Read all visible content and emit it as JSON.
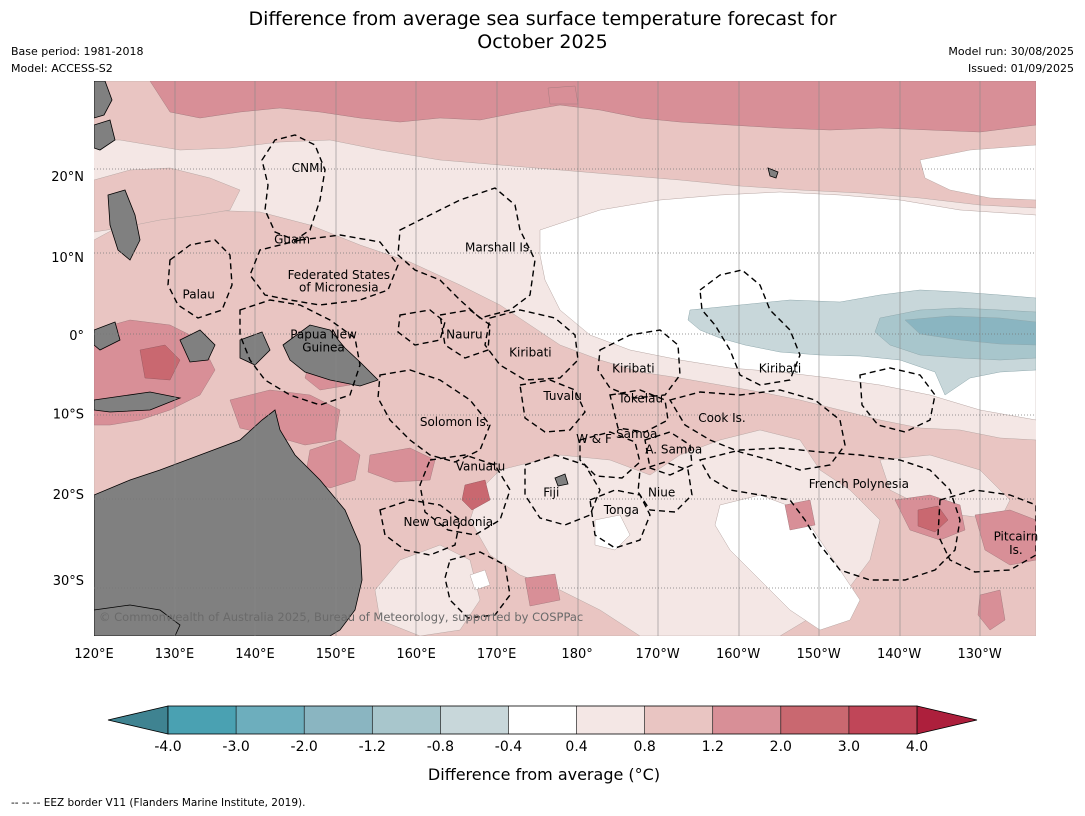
{
  "title_line1": "Difference from average sea surface temperature forecast for",
  "title_line2": "October 2025",
  "meta": {
    "base_period": "Base period: 1981-2018",
    "model": "Model: ACCESS-S2",
    "model_run": "Model run: 30/08/2025",
    "issued": "Issued: 01/09/2025"
  },
  "map": {
    "lon_ticks": [
      "120°E",
      "130°E",
      "140°E",
      "150°E",
      "160°E",
      "170°E",
      "180°",
      "170°W",
      "160°W",
      "150°W",
      "140°W",
      "130°W"
    ],
    "lat_ticks": [
      "20°N",
      "10°N",
      "0°",
      "10°S",
      "20°S",
      "30°S"
    ],
    "lon_range": [
      120,
      237
    ],
    "lat_range": [
      -36,
      31
    ],
    "copyright": "© Commonwealth of Australia 2025, Bureau of Meteorology, supported by COSPPac",
    "countries": [
      {
        "name": "CNMI",
        "lon": 146.5,
        "lat": 21.0
      },
      {
        "name": "Guam",
        "lon": 144.6,
        "lat": 12.2
      },
      {
        "name": "Marshall Is.",
        "lon": 170.3,
        "lat": 11.2
      },
      {
        "name": "Federated States",
        "lon": 150.4,
        "lat": 7.7
      },
      {
        "name": "of Micronesia",
        "lon": 150.4,
        "lat": 6.1
      },
      {
        "name": "Palau",
        "lon": 133.0,
        "lat": 5.2
      },
      {
        "name": "Nauru",
        "lon": 166.0,
        "lat": 0.1
      },
      {
        "name": "Papua New",
        "lon": 148.5,
        "lat": 0.1
      },
      {
        "name": "Guinea",
        "lon": 148.5,
        "lat": -1.6
      },
      {
        "name": "Kiribati",
        "lon": 174.2,
        "lat": -2.2
      },
      {
        "name": "Kiribati",
        "lon": 187.0,
        "lat": -4.3
      },
      {
        "name": "Kiribati",
        "lon": 205.2,
        "lat": -4.3
      },
      {
        "name": "Tuvalu",
        "lon": 178.2,
        "lat": -7.8
      },
      {
        "name": "Tokelau",
        "lon": 187.9,
        "lat": -8.1
      },
      {
        "name": "Cook Is.",
        "lon": 198.0,
        "lat": -10.6
      },
      {
        "name": "Solomon Is.",
        "lon": 164.8,
        "lat": -11.1
      },
      {
        "name": "Samoa",
        "lon": 187.4,
        "lat": -12.6
      },
      {
        "name": "W & F",
        "lon": 182.1,
        "lat": -13.2
      },
      {
        "name": "A. Samoa",
        "lon": 192.0,
        "lat": -14.5
      },
      {
        "name": "Vanuatu",
        "lon": 168.0,
        "lat": -16.6
      },
      {
        "name": "French Polynesia",
        "lon": 215.0,
        "lat": -18.8
      },
      {
        "name": "Fiji",
        "lon": 176.8,
        "lat": -19.8
      },
      {
        "name": "Niue",
        "lon": 190.5,
        "lat": -19.8
      },
      {
        "name": "Tonga",
        "lon": 185.5,
        "lat": -21.9
      },
      {
        "name": "New Caledonia",
        "lon": 164.0,
        "lat": -23.3
      },
      {
        "name": "Pitcairn",
        "lon": 234.5,
        "lat": -25.0
      },
      {
        "name": "Is.",
        "lon": 234.5,
        "lat": -26.6
      }
    ]
  },
  "colorbar": {
    "title": "Difference from average (°C)",
    "tick_labels": [
      "-4.0",
      "-3.0",
      "-2.0",
      "-1.2",
      "-0.8",
      "-0.4",
      "0.4",
      "0.8",
      "1.2",
      "2.0",
      "3.0",
      "4.0"
    ],
    "under_color": "#3f8391",
    "over_color": "#ad1f3c",
    "colors": [
      "#4aa1b2",
      "#6daebd",
      "#8ab5c1",
      "#a8c6cc",
      "#c8d7da",
      "#ffffff",
      "#f4e7e5",
      "#e9c5c2",
      "#d88f97",
      "#c96870",
      "#c04658"
    ]
  },
  "footer": "--  --  -- EEZ border V11 (Flanders Marine Institute, 2019)."
}
